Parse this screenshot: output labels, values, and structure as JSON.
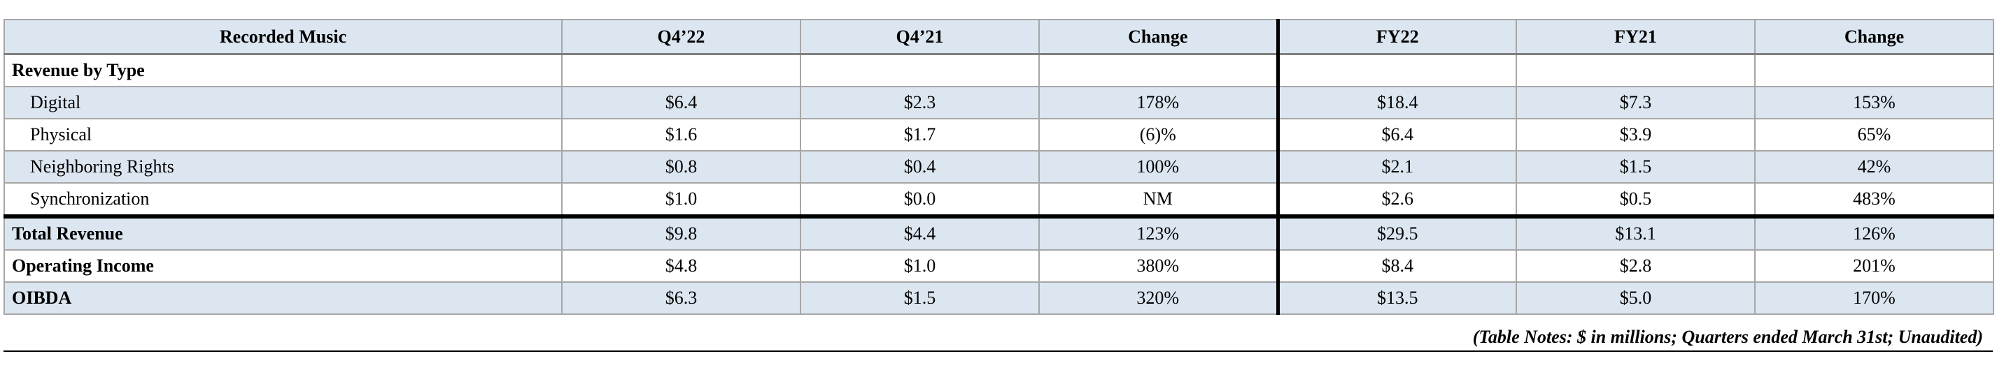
{
  "table": {
    "headers": [
      "Recorded Music",
      "Q4’22",
      "Q4’21",
      "Change",
      "FY22",
      "FY21",
      "Change"
    ],
    "section_label": "Revenue by Type",
    "type_rows": [
      {
        "label": "Digital",
        "values": [
          "$6.4",
          "$2.3",
          "178%",
          "$18.4",
          "$7.3",
          "153%"
        ]
      },
      {
        "label": "Physical",
        "values": [
          "$1.6",
          "$1.7",
          "(6)%",
          "$6.4",
          "$3.9",
          "65%"
        ]
      },
      {
        "label": "Neighboring Rights",
        "values": [
          "$0.8",
          "$0.4",
          "100%",
          "$2.1",
          "$1.5",
          "42%"
        ]
      },
      {
        "label": "Synchronization",
        "values": [
          "$1.0",
          "$0.0",
          "NM",
          "$2.6",
          "$0.5",
          "483%"
        ]
      }
    ],
    "summary_rows": [
      {
        "label": "Total Revenue",
        "values": [
          "$9.8",
          "$4.4",
          "123%",
          "$29.5",
          "$13.1",
          "126%"
        ]
      },
      {
        "label": "Operating Income",
        "values": [
          "$4.8",
          "$1.0",
          "380%",
          "$8.4",
          "$2.8",
          "201%"
        ]
      },
      {
        "label": "OIBDA",
        "values": [
          "$6.3",
          "$1.5",
          "320%",
          "$13.5",
          "$5.0",
          "170%"
        ]
      }
    ]
  },
  "notes": "(Table Notes: $ in millions; Quarters ended March 31st; Unaudited)",
  "colors": {
    "header_fill": "#dce6f1",
    "shaded_row_fill": "#dce6f1",
    "grid_line": "#a6a6a6",
    "separator_line": "#000000"
  }
}
